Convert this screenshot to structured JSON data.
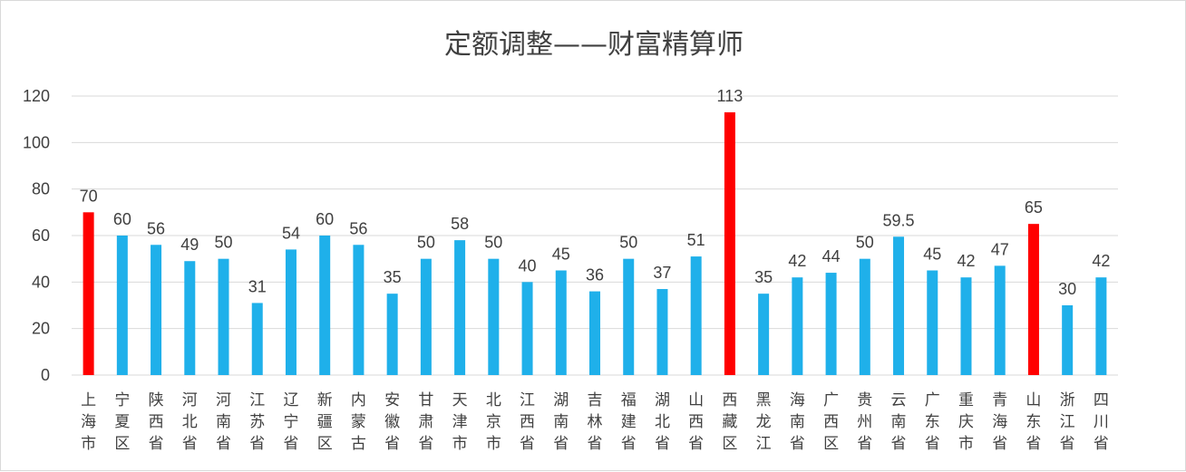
{
  "chart_data": {
    "type": "bar",
    "title": "定额调整——财富精算师",
    "xlabel": "",
    "ylabel": "",
    "ylim": [
      0,
      120
    ],
    "yticks": [
      0,
      20,
      40,
      60,
      80,
      100,
      120
    ],
    "grid": true,
    "legend": "none",
    "categories": [
      "上海市",
      "宁夏区",
      "陕西省",
      "河北省",
      "河南省",
      "江苏省",
      "辽宁省",
      "新疆区",
      "内蒙古",
      "安徽省",
      "甘肃省",
      "天津市",
      "北京市",
      "江西省",
      "湖南省",
      "吉林省",
      "福建省",
      "湖北省",
      "山西省",
      "西藏区",
      "黑龙江",
      "海南省",
      "广西区",
      "贵州省",
      "云南省",
      "广东省",
      "重庆市",
      "青海省",
      "山东省",
      "浙江省",
      "四川省"
    ],
    "values": [
      70,
      60,
      56,
      49,
      50,
      31,
      54,
      60,
      56,
      35,
      50,
      58,
      50,
      40,
      45,
      36,
      50,
      37,
      51,
      113,
      35,
      42,
      44,
      50,
      59.5,
      45,
      42,
      47,
      65,
      30,
      42
    ],
    "data_labels": [
      "70",
      "60",
      "56",
      "49",
      "50",
      "31",
      "54",
      "60",
      "56",
      "35",
      "50",
      "58",
      "50",
      "40",
      "45",
      "36",
      "50",
      "37",
      "51",
      "113",
      "35",
      "42",
      "44",
      "50",
      "59.5",
      "45",
      "42",
      "47",
      "65",
      "30",
      "42"
    ],
    "highlighted": [
      "上海市",
      "西藏区",
      "山东省"
    ],
    "colors": {
      "default": "#1fb0ea",
      "highlight": "#ff0000",
      "grid": "#d9d9d9",
      "text": "#404040"
    }
  }
}
